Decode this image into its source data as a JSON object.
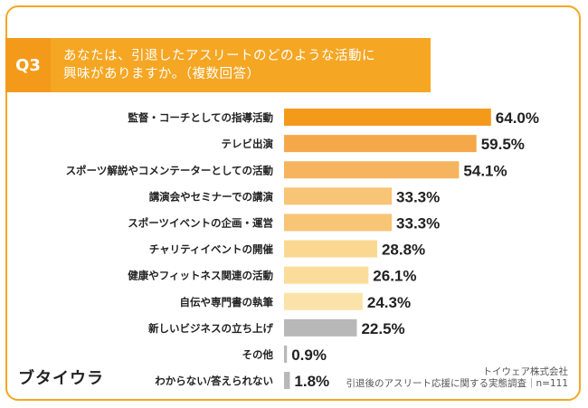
{
  "question": {
    "number": "Q3",
    "text_line1": "あなたは、引退したアスリートのどのような活動に",
    "text_line2": "興味がありますか。（複数回答）"
  },
  "footer": {
    "logo": "ブタイウラ",
    "company": "トイウェア株式会社",
    "survey": "引退後のアスリート応援に関する実態調査｜n=111"
  },
  "colors": {
    "accent": "#f5a623",
    "gray_bar": "#b8b8b8"
  },
  "chart_data": {
    "type": "bar",
    "orientation": "horizontal",
    "categories": [
      "監督・コーチとしての指導活動",
      "テレビ出演",
      "スポーツ解説やコメンテーターとしての活動",
      "講演会やセミナーでの講演",
      "スポーツイベントの企画・運営",
      "チャリティイベントの開催",
      "健康やフィットネス関連の活動",
      "自伝や専門書の執筆",
      "新しいビジネスの立ち上げ",
      "その他",
      "わからない/答えられない"
    ],
    "values": [
      64.0,
      59.5,
      54.1,
      33.3,
      33.3,
      28.8,
      26.1,
      24.3,
      22.5,
      0.9,
      1.8
    ],
    "value_labels": [
      "64.0%",
      "59.5%",
      "54.1%",
      "33.3%",
      "33.3%",
      "28.8%",
      "26.1%",
      "24.3%",
      "22.5%",
      "0.9%",
      "1.8%"
    ],
    "bar_colors": [
      "#f49a1a",
      "#f5a84a",
      "#f6b45e",
      "#f8c476",
      "#f8c476",
      "#fbd891",
      "#fbdc9a",
      "#fbe2a8",
      "#b8b8b8",
      "#b8b8b8",
      "#b8b8b8"
    ],
    "xlim": [
      0,
      100
    ],
    "title": "",
    "xlabel": "",
    "ylabel": ""
  }
}
